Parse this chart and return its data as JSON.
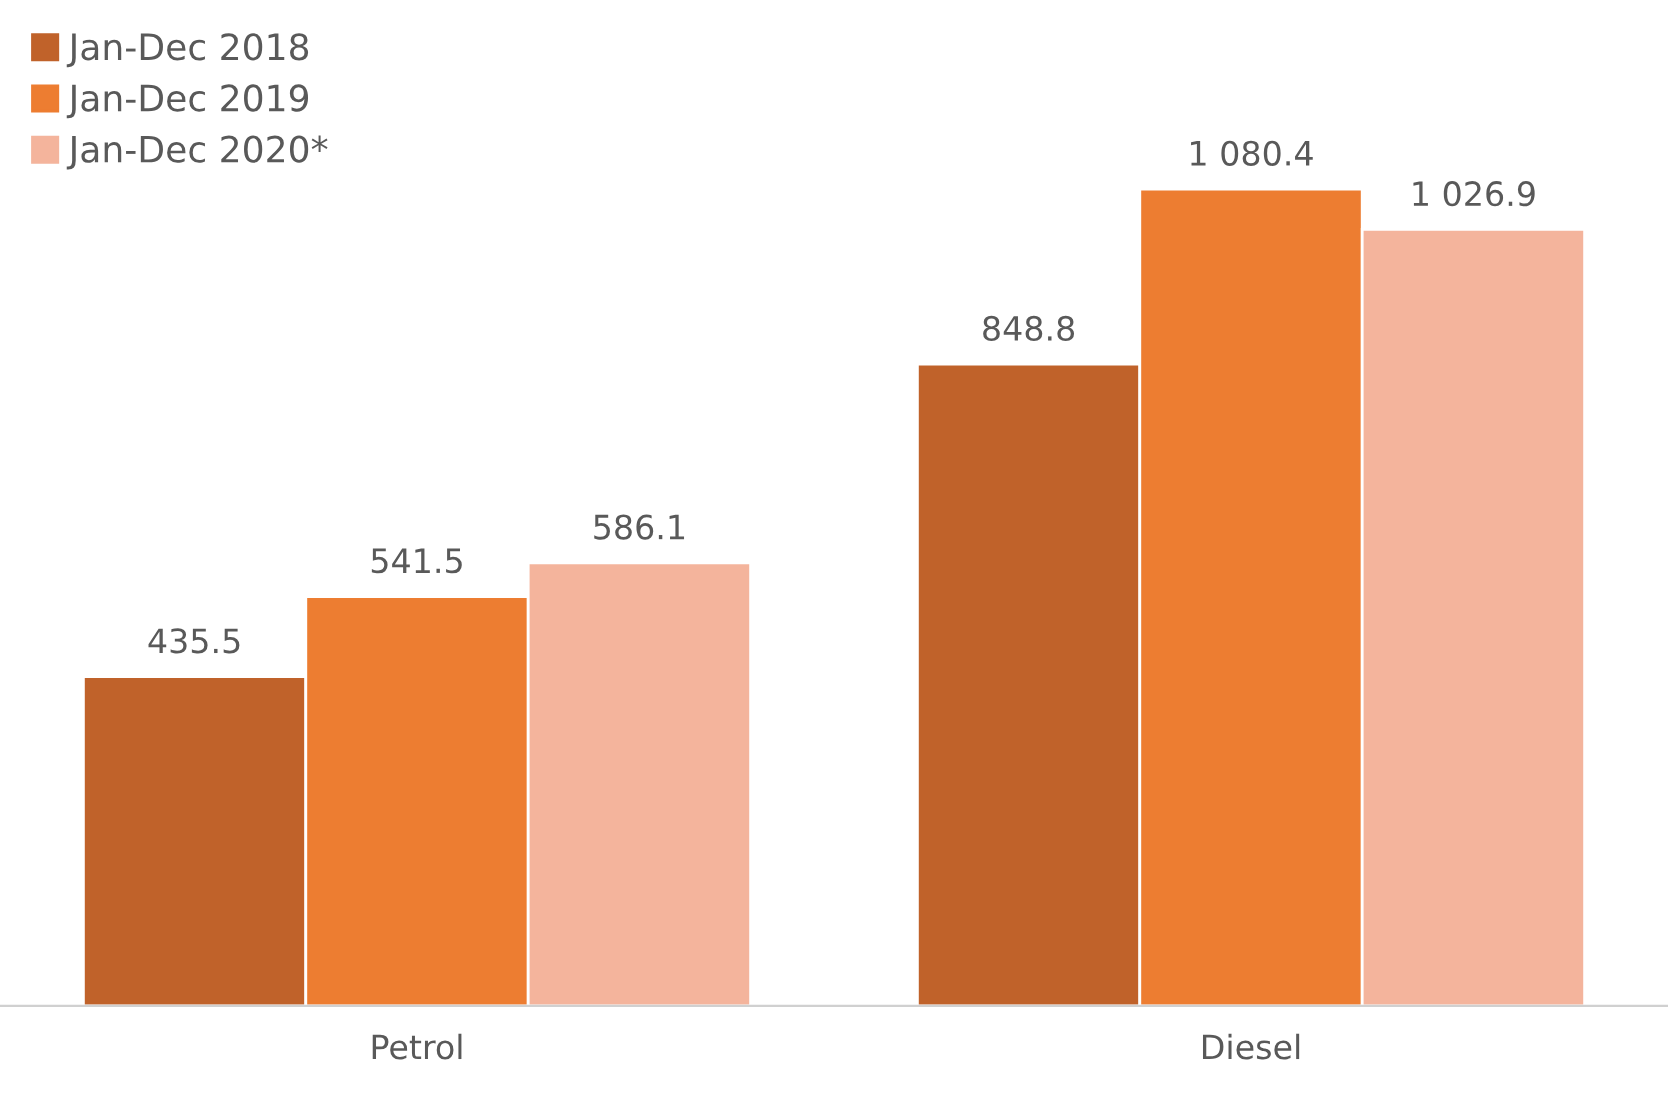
{
  "chart_data": {
    "type": "bar",
    "categories": [
      "Petrol",
      "Diesel"
    ],
    "series": [
      {
        "name": "Jan-Dec 2018",
        "color": "#c0622a",
        "values": [
          435.5,
          848.8
        ],
        "value_labels": [
          "435.5",
          "848.8"
        ]
      },
      {
        "name": "Jan-Dec 2019",
        "color": "#ed7d31",
        "values": [
          541.5,
          1080.4
        ],
        "value_labels": [
          "541.5",
          "1 080.4"
        ]
      },
      {
        "name": "Jan-Dec 2020*",
        "color": "#f4b49c",
        "values": [
          586.1,
          1026.9
        ],
        "value_labels": [
          "586.1",
          "1 026.9"
        ]
      }
    ],
    "tick_labels": "x",
    "grid": false,
    "legend": "top left"
  }
}
